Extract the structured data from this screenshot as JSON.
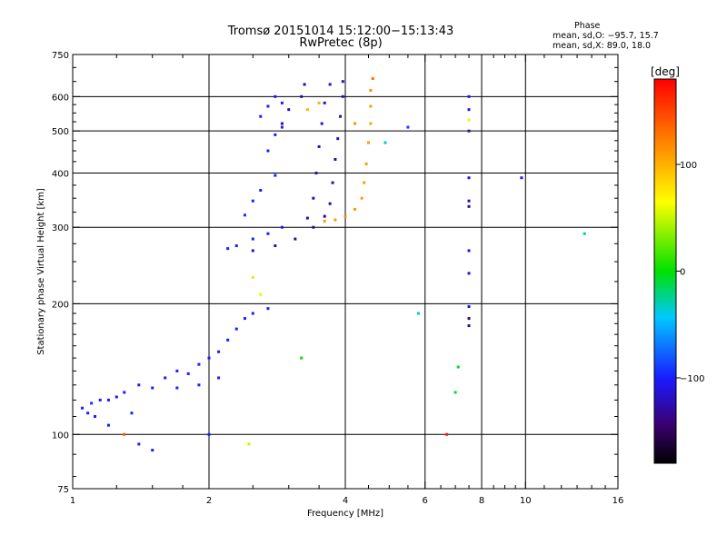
{
  "header": {
    "title_line1": "Tromsø 20151014 15:12:00−15:13:43",
    "title_line2": "RwPretec (8p)",
    "phase_title": "Phase",
    "phase_line_O": "mean, sd,O: −95.7, 15.7",
    "phase_line_X": "mean, sd,X:  89.0, 18.0"
  },
  "chart_data": {
    "type": "scatter",
    "title": "Tromsø 20151014 15:12:00−15:13:43",
    "subtitle": "RwPretec (8p)",
    "xlabel": "Frequency [MHz]",
    "ylabel": "Stationary phase Virtual Height [km]",
    "x_scale": "log",
    "y_scale": "log",
    "xlim": [
      1,
      16
    ],
    "ylim": [
      75,
      750
    ],
    "x_ticks": [
      1,
      2,
      4,
      6,
      8,
      10,
      16
    ],
    "x_tick_labels": [
      "1",
      "2",
      "4",
      "6",
      "8",
      "10",
      "16"
    ],
    "x_grid": [
      2,
      4,
      6,
      8,
      10
    ],
    "y_ticks": [
      75,
      100,
      200,
      300,
      400,
      500,
      600,
      750
    ],
    "y_tick_labels": [
      "75",
      "100",
      "200",
      "300",
      "400",
      "500",
      "600",
      "750"
    ],
    "y_grid": [
      100,
      200,
      300,
      400,
      500,
      600
    ],
    "colorbar": {
      "label": "[deg]",
      "range": [
        -180,
        180
      ],
      "ticks": [
        100,
        0,
        -100
      ],
      "tick_labels": [
        "100",
        "0",
        "−100"
      ]
    },
    "series": [
      {
        "points": [
          [
            1.05,
            115,
            -100
          ],
          [
            1.08,
            112,
            -100
          ],
          [
            1.1,
            118,
            -95
          ],
          [
            1.12,
            110,
            -100
          ],
          [
            1.15,
            120,
            -100
          ],
          [
            1.2,
            105,
            -100
          ],
          [
            1.25,
            122,
            -105
          ],
          [
            1.3,
            125,
            -100
          ],
          [
            1.35,
            112,
            -100
          ],
          [
            1.4,
            130,
            -100
          ],
          [
            1.5,
            128,
            -100
          ],
          [
            1.6,
            135,
            -105
          ],
          [
            1.7,
            140,
            -100
          ],
          [
            1.8,
            138,
            -100
          ],
          [
            1.9,
            145,
            -100
          ],
          [
            2.0,
            150,
            -100
          ],
          [
            2.1,
            155,
            -100
          ],
          [
            2.2,
            165,
            -100
          ],
          [
            2.3,
            175,
            -100
          ],
          [
            2.4,
            185,
            -100
          ],
          [
            2.5,
            190,
            -100
          ],
          [
            2.7,
            195,
            -100
          ],
          [
            1.4,
            95,
            -100
          ],
          [
            1.5,
            92,
            -100
          ],
          [
            1.2,
            120,
            -100
          ],
          [
            1.7,
            128,
            -100
          ],
          [
            1.9,
            130,
            -100
          ],
          [
            2.1,
            135,
            -100
          ],
          [
            2.2,
            268,
            -100
          ],
          [
            2.3,
            272,
            -100
          ],
          [
            2.5,
            282,
            -100
          ],
          [
            2.7,
            290,
            -100
          ],
          [
            2.9,
            300,
            -100
          ],
          [
            2.4,
            320,
            -95
          ],
          [
            2.5,
            345,
            -100
          ],
          [
            2.6,
            365,
            -100
          ],
          [
            2.8,
            395,
            -100
          ],
          [
            2.7,
            450,
            -100
          ],
          [
            2.8,
            490,
            -100
          ],
          [
            2.9,
            510,
            -100
          ],
          [
            2.6,
            540,
            -100
          ],
          [
            2.7,
            570,
            -100
          ],
          [
            2.8,
            600,
            -105
          ],
          [
            2.9,
            580,
            -100
          ],
          [
            7.5,
            600,
            -105
          ],
          [
            7.5,
            560,
            -100
          ],
          [
            7.5,
            500,
            -120
          ],
          [
            7.5,
            390,
            -110
          ],
          [
            7.5,
            345,
            -125
          ],
          [
            7.5,
            335,
            -135
          ],
          [
            7.5,
            265,
            -105
          ],
          [
            7.5,
            235,
            -110
          ],
          [
            7.5,
            197,
            -115
          ],
          [
            7.5,
            185,
            -140
          ],
          [
            7.5,
            178,
            -130
          ],
          [
            9.8,
            390,
            -110
          ],
          [
            2.0,
            100,
            -100
          ],
          [
            3.2,
            150,
            0
          ],
          [
            5.8,
            190,
            -30
          ]
        ]
      },
      {
        "points": [
          [
            2.5,
            265,
            -120
          ],
          [
            2.8,
            272,
            -125
          ],
          [
            3.1,
            282,
            -130
          ],
          [
            3.4,
            300,
            -130
          ],
          [
            3.6,
            318,
            -135
          ],
          [
            3.7,
            340,
            -130
          ],
          [
            3.75,
            380,
            -125
          ],
          [
            3.8,
            430,
            -125
          ],
          [
            3.85,
            480,
            -120
          ],
          [
            3.9,
            540,
            -120
          ],
          [
            3.95,
            600,
            -120
          ],
          [
            3.95,
            650,
            -115
          ],
          [
            3.3,
            315,
            -120
          ],
          [
            3.4,
            350,
            -120
          ],
          [
            3.45,
            400,
            -118
          ],
          [
            3.5,
            460,
            -115
          ],
          [
            3.55,
            520,
            -115
          ],
          [
            3.6,
            580,
            -115
          ],
          [
            3.7,
            640,
            -115
          ],
          [
            3.2,
            600,
            -130
          ],
          [
            3.25,
            640,
            -130
          ],
          [
            3.0,
            560,
            -125
          ],
          [
            2.9,
            520,
            -125
          ]
        ]
      },
      {
        "points": [
          [
            3.6,
            310,
            110
          ],
          [
            3.8,
            312,
            110
          ],
          [
            4.0,
            318,
            115
          ],
          [
            4.2,
            330,
            112
          ],
          [
            4.35,
            350,
            110
          ],
          [
            4.4,
            380,
            110
          ],
          [
            4.45,
            420,
            112
          ],
          [
            4.5,
            470,
            110
          ],
          [
            4.55,
            520,
            105
          ],
          [
            4.55,
            570,
            110
          ],
          [
            4.55,
            620,
            115
          ],
          [
            4.6,
            660,
            130
          ],
          [
            3.5,
            580,
            100
          ],
          [
            3.3,
            560,
            100
          ],
          [
            4.2,
            520,
            115
          ]
        ]
      },
      {
        "points": [
          [
            2.45,
            95,
            50
          ],
          [
            4.9,
            470,
            -30
          ],
          [
            5.5,
            510,
            -90
          ],
          [
            6.7,
            100,
            170
          ],
          [
            7.0,
            125,
            -10
          ],
          [
            7.1,
            143,
            -5
          ],
          [
            13.5,
            290,
            -20
          ],
          [
            2.5,
            230,
            80
          ],
          [
            2.6,
            210,
            60
          ],
          [
            7.5,
            530,
            60
          ],
          [
            1.3,
            100,
            140
          ]
        ]
      }
    ]
  }
}
